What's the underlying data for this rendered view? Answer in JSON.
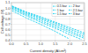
{
  "chart_data": {
    "type": "line",
    "title": "",
    "x_label": "Current density (A/cm²)",
    "y_label": "Cell voltage (V)",
    "xlim": [
      0,
      2.5
    ],
    "ylim": [
      0.4,
      1.1
    ],
    "xticks": [
      {
        "value": 0,
        "label": "0.0"
      },
      0.5,
      {
        "value": 1.0,
        "label": "1.0"
      },
      1.5,
      {
        "value": 2.0,
        "label": "2.0"
      },
      2.5
    ],
    "yticks": [
      0.4,
      0.5,
      0.6,
      0.7,
      0.8,
      0.9,
      {
        "value": 1.0,
        "label": "1.0"
      },
      1.1
    ],
    "grid": true,
    "legend": "upper right",
    "line_style": "dashed",
    "series": [
      {
        "name": "3 bar",
        "color": "#00ccee",
        "x": [
          0.02,
          0.5,
          1.0,
          1.5,
          2.0,
          2.5
        ],
        "values": [
          1.04,
          0.93,
          0.84,
          0.74,
          0.64,
          0.54
        ]
      },
      {
        "name": "2.5 bar",
        "color": "#00ccee",
        "x": [
          0.02,
          0.5,
          1.0,
          1.5,
          2.0,
          2.5
        ],
        "values": [
          1.03,
          0.92,
          0.82,
          0.72,
          0.61,
          0.51
        ]
      },
      {
        "name": "2 bar",
        "color": "#00ccee",
        "x": [
          0.02,
          0.5,
          1.0,
          1.5,
          2.0,
          2.5
        ],
        "values": [
          1.02,
          0.9,
          0.8,
          0.69,
          0.58,
          0.47
        ]
      },
      {
        "name": "1.5 bar",
        "color": "#00ccee",
        "x": [
          0.02,
          0.5,
          1.0,
          1.5,
          2.0,
          2.5
        ],
        "values": [
          1.0,
          0.88,
          0.77,
          0.66,
          0.55,
          0.44
        ]
      },
      {
        "name": "1 bar",
        "color": "#00ccee",
        "x": [
          0.02,
          0.5,
          1.0,
          1.5,
          2.0,
          2.4
        ],
        "values": [
          0.98,
          0.86,
          0.74,
          0.63,
          0.51,
          0.42
        ]
      },
      {
        "name": "0.5 bar",
        "color": "#00ccee",
        "x": [
          0.02,
          0.5,
          1.0,
          1.5,
          1.95
        ],
        "values": [
          0.95,
          0.82,
          0.7,
          0.57,
          0.44
        ]
      }
    ]
  }
}
